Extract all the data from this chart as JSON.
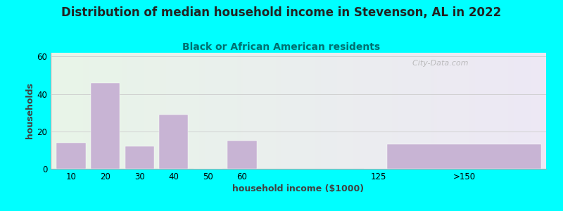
{
  "title": "Distribution of median household income in Stevenson, AL in 2022",
  "subtitle": "Black or African American residents",
  "xlabel": "household income ($1000)",
  "ylabel": "households",
  "background_color": "#00FFFF",
  "bar_color": "#c8b4d4",
  "yticks": [
    0,
    20,
    40,
    60
  ],
  "ylim": [
    0,
    62
  ],
  "values": [
    14,
    46,
    12,
    29,
    0,
    15,
    0,
    13
  ],
  "bar_positions": [
    1,
    2,
    3,
    4,
    5,
    6,
    10,
    12.5
  ],
  "bar_widths": [
    0.85,
    0.85,
    0.85,
    0.85,
    0.85,
    0.85,
    0.85,
    4.5
  ],
  "xtick_positions": [
    1,
    2,
    3,
    4,
    5,
    6,
    10,
    12.5
  ],
  "xtick_labels": [
    "10",
    "20",
    "30",
    "40",
    "50",
    "60",
    "125",
    ">150"
  ],
  "title_fontsize": 12,
  "subtitle_fontsize": 10,
  "axis_label_fontsize": 9,
  "tick_fontsize": 8.5,
  "title_color": "#222222",
  "subtitle_color": "#007070",
  "watermark": "  City-Data.com"
}
